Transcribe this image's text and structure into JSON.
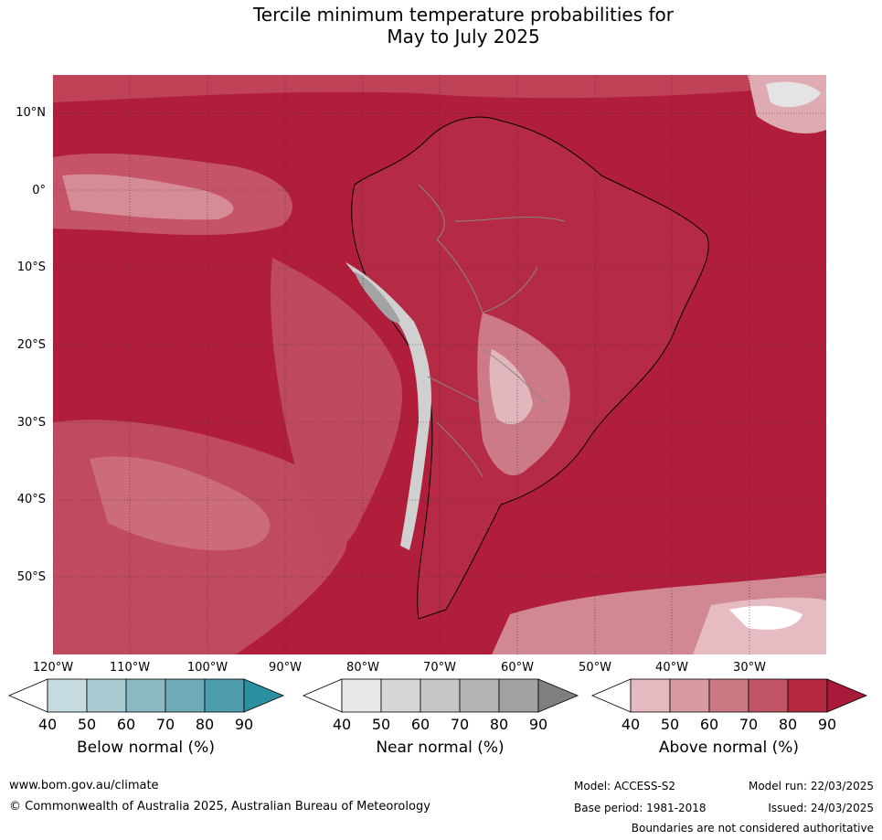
{
  "title_line1": "Tercile minimum temperature probabilities for",
  "title_line2": "May to July 2025",
  "lat_labels": [
    "10°N",
    "0°",
    "10°S",
    "20°S",
    "30°S",
    "40°S",
    "50°S"
  ],
  "lon_labels": [
    "120°W",
    "110°W",
    "100°W",
    "90°W",
    "80°W",
    "70°W",
    "60°W",
    "50°W",
    "40°W",
    "30°W"
  ],
  "colorbars": [
    {
      "label": "Below normal (%)",
      "ticks": [
        "40",
        "50",
        "60",
        "70",
        "80",
        "90"
      ],
      "colors": [
        "#ffffff",
        "#c5dbe0",
        "#a9cad1",
        "#8cb8c4",
        "#6eaab8",
        "#4e9daf",
        "#2a8fa1"
      ]
    },
    {
      "label": "Near normal (%)",
      "ticks": [
        "40",
        "50",
        "60",
        "70",
        "80",
        "90"
      ],
      "colors": [
        "#ffffff",
        "#e8e8e8",
        "#d6d6d6",
        "#c6c6c6",
        "#b3b3b3",
        "#a1a1a1",
        "#7f7f7f"
      ]
    },
    {
      "label": "Above normal (%)",
      "ticks": [
        "40",
        "50",
        "60",
        "70",
        "80",
        "90"
      ],
      "colors": [
        "#ffffff",
        "#e4b9bf",
        "#d89aa2",
        "#cc7883",
        "#c15566",
        "#b5293e",
        "#a8193a"
      ]
    }
  ],
  "footer": {
    "website": "www.bom.gov.au/climate",
    "copyright": "© Commonwealth of Australia 2025, Australian Bureau of Meteorology",
    "model": "Model: ACCESS-S2",
    "base_period": "Base period: 1981-2018",
    "model_run": "Model run: 22/03/2025",
    "issued": "Issued: 24/03/2025",
    "disclaimer": "Boundaries are not considered authoritative"
  }
}
